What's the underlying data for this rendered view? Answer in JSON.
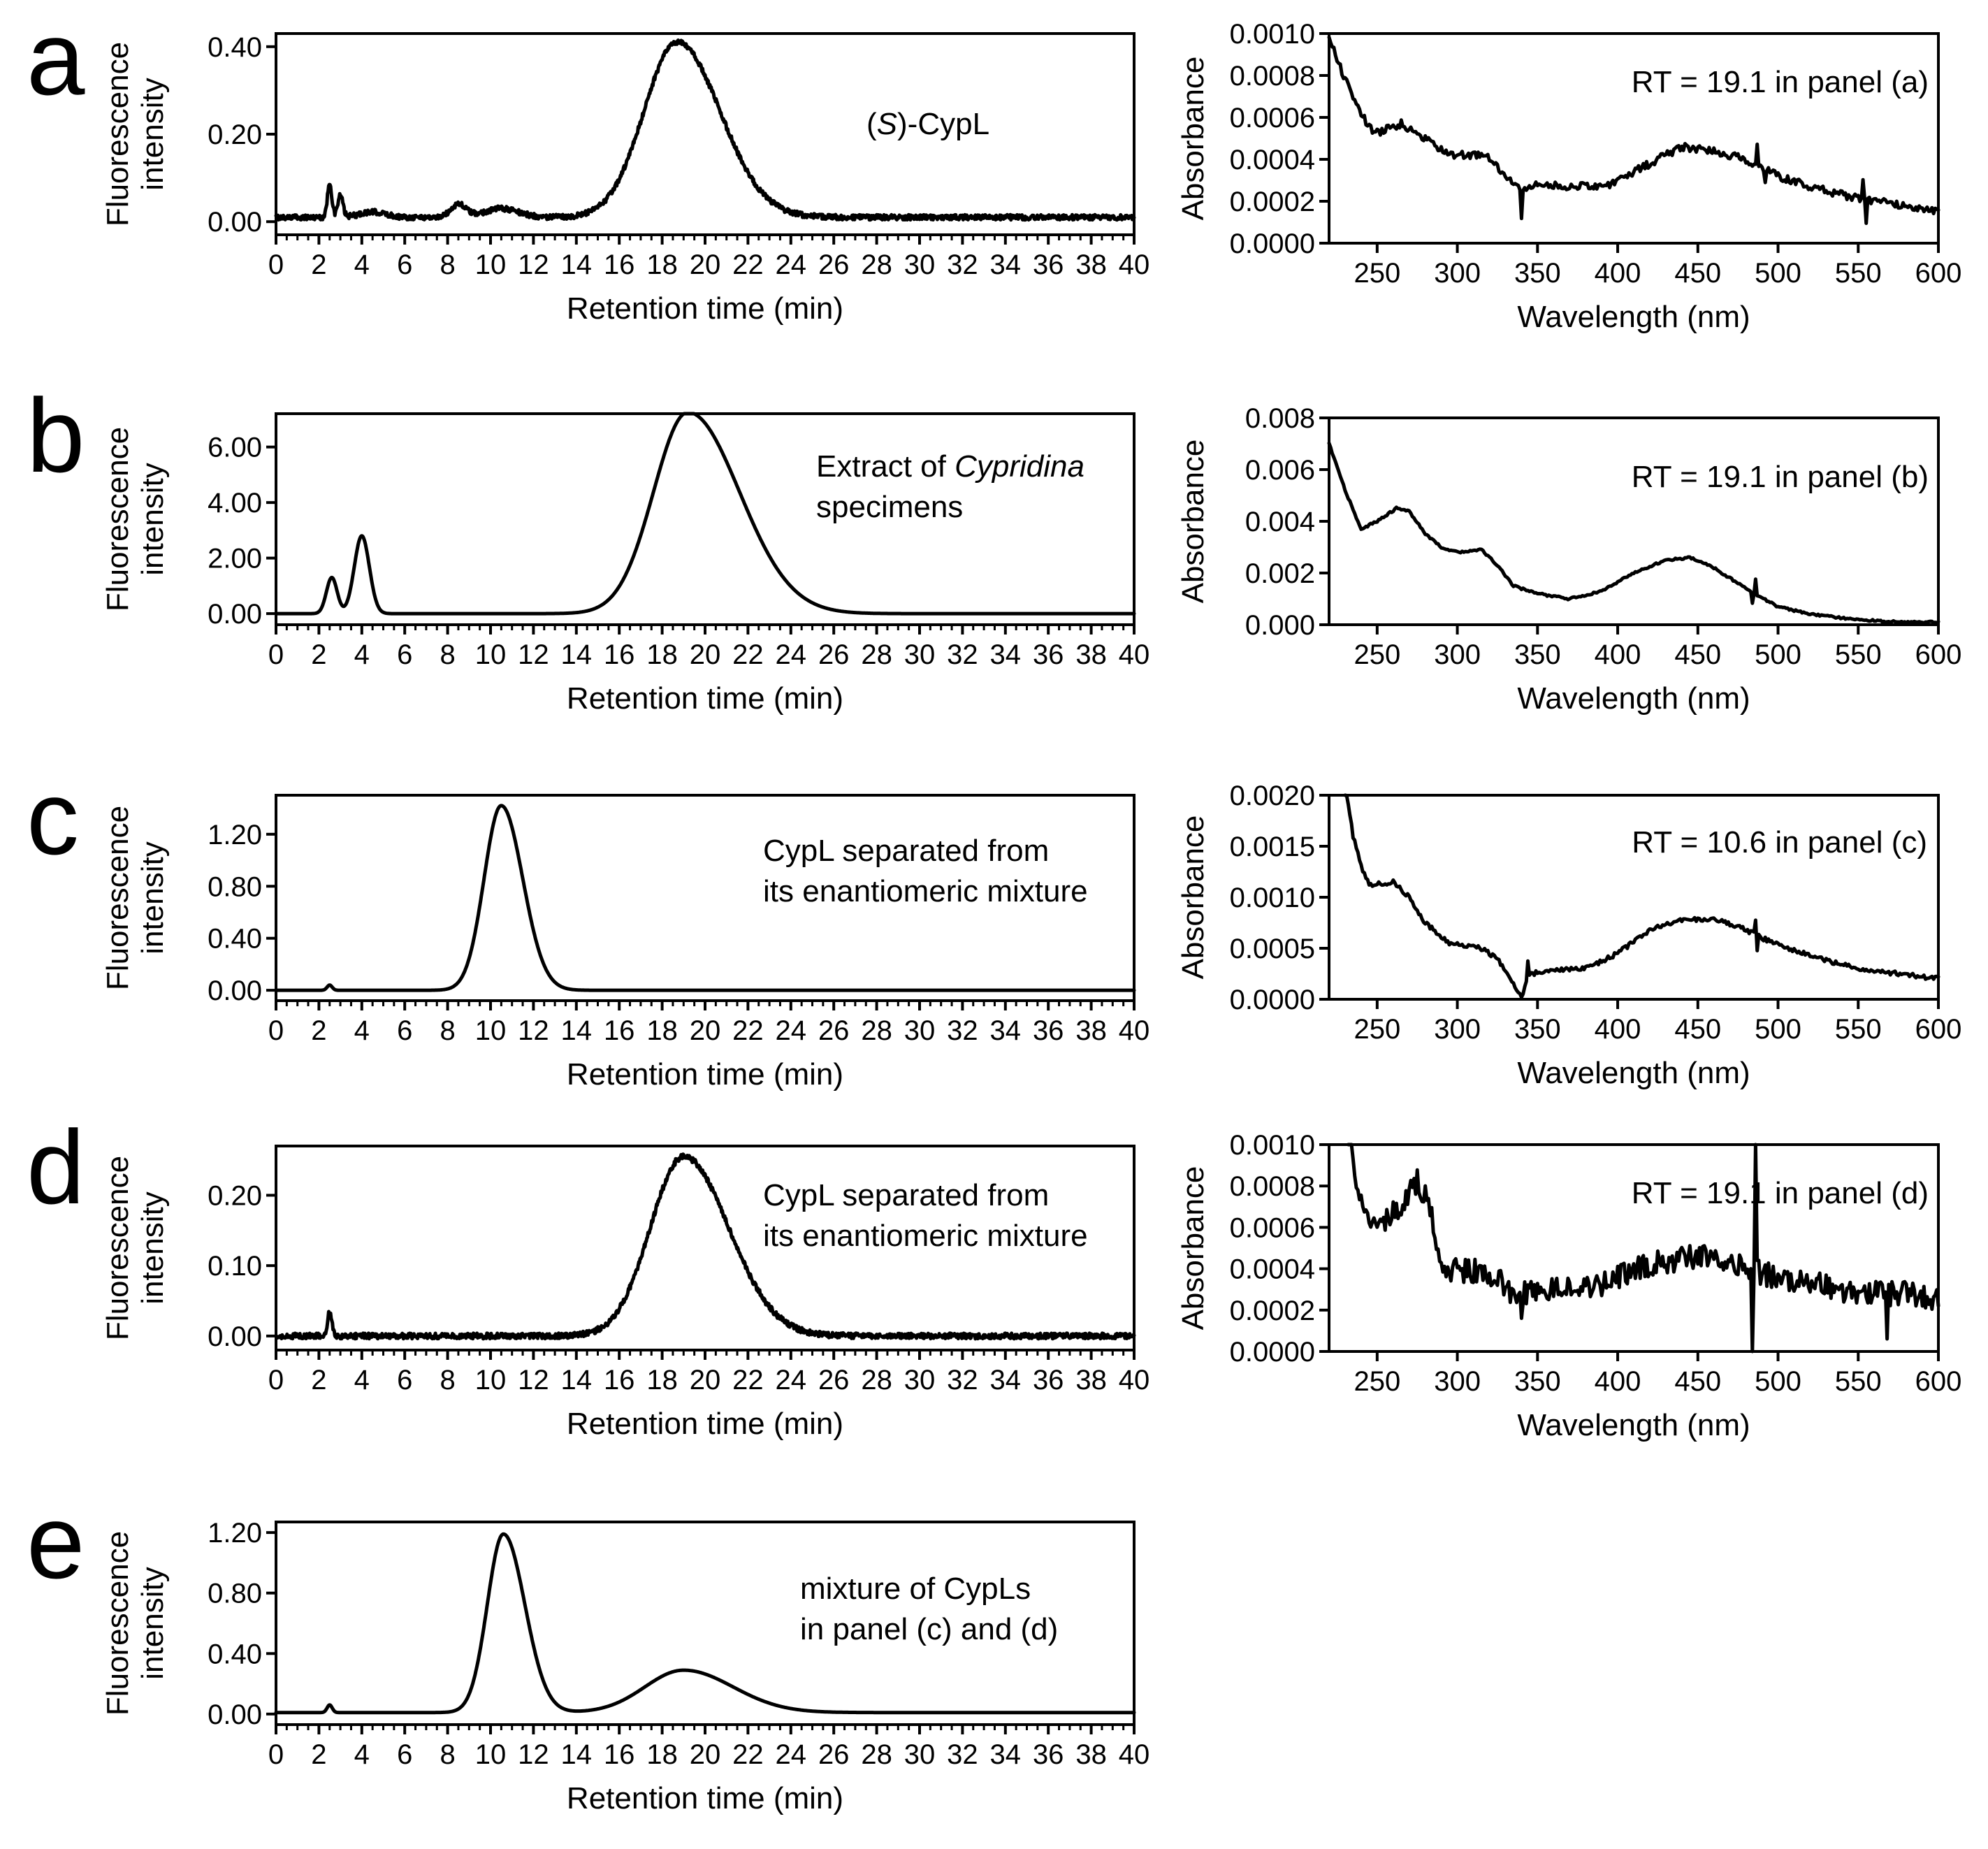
{
  "figure": {
    "panels": [
      {
        "id": "a",
        "letter": "a"
      },
      {
        "id": "b",
        "letter": "b"
      },
      {
        "id": "c",
        "letter": "c"
      },
      {
        "id": "d",
        "letter": "d"
      },
      {
        "id": "e",
        "letter": "e"
      }
    ]
  },
  "chart_data": [
    {
      "id": "a-chromatogram",
      "panel": "a",
      "type": "line",
      "xlabel": "Retention time (min)",
      "ylabel_lines": [
        "Fluorescence",
        "intensity"
      ],
      "xlim": [
        0,
        40
      ],
      "ylim": [
        -0.03,
        0.43
      ],
      "xticks": [
        0,
        2,
        4,
        6,
        8,
        10,
        12,
        14,
        16,
        18,
        20,
        22,
        24,
        26,
        28,
        30,
        32,
        34,
        36,
        38,
        40
      ],
      "yticks": [
        0.0,
        0.2,
        0.4
      ],
      "ytick_decimals": 2,
      "annotation_lines": [
        [
          {
            "text": "("
          },
          {
            "text": "S",
            "italic": true
          },
          {
            "text": ")-CypL"
          }
        ]
      ],
      "baseline": 0.01,
      "peaks": [
        [
          2.5,
          0.08,
          0.1
        ],
        [
          3.0,
          0.05,
          0.12
        ],
        [
          4.5,
          0.012,
          0.6
        ],
        [
          8.5,
          0.03,
          0.35
        ],
        [
          10.5,
          0.02,
          0.8
        ],
        [
          18.7,
          0.4,
          1.55,
          2.0
        ]
      ],
      "noise": 0.006
    },
    {
      "id": "a-spectrum",
      "panel": "a",
      "type": "line",
      "xlabel": "Wavelength (nm)",
      "ylabel_lines": [
        "Absorbance"
      ],
      "xlim": [
        220,
        600
      ],
      "ylim": [
        0,
        0.001
      ],
      "xticks": [
        250,
        300,
        350,
        400,
        450,
        500,
        550,
        600
      ],
      "yticks": [
        0.0,
        0.0002,
        0.0004,
        0.0006,
        0.0008,
        0.001
      ],
      "ytick_decimals": 4,
      "annotation_lines": [
        [
          {
            "text": "RT = 19.1 in panel (a)"
          }
        ]
      ],
      "points": [
        [
          220,
          0.00098
        ],
        [
          230,
          0.00078
        ],
        [
          240,
          0.00062
        ],
        [
          248,
          0.00052
        ],
        [
          265,
          0.00057
        ],
        [
          280,
          0.0005
        ],
        [
          295,
          0.00042
        ],
        [
          318,
          0.00042
        ],
        [
          330,
          0.00032
        ],
        [
          340,
          0.00025
        ],
        [
          350,
          0.00028
        ],
        [
          375,
          0.00027
        ],
        [
          395,
          0.00028
        ],
        [
          420,
          0.00038
        ],
        [
          440,
          0.00046
        ],
        [
          460,
          0.00044
        ],
        [
          480,
          0.0004
        ],
        [
          500,
          0.00032
        ],
        [
          520,
          0.00027
        ],
        [
          540,
          0.00023
        ],
        [
          560,
          0.0002
        ],
        [
          580,
          0.00018
        ],
        [
          600,
          0.00015
        ]
      ],
      "spikes": [
        [
          340,
          -0.00014
        ],
        [
          487,
          0.0001
        ],
        [
          492,
          -8e-05
        ],
        [
          553,
          0.0001
        ],
        [
          555,
          -0.00012
        ]
      ],
      "noise": 1.8e-05
    },
    {
      "id": "b-chromatogram",
      "panel": "b",
      "type": "line",
      "xlabel": "Retention time (min)",
      "ylabel_lines": [
        "Fluorescence",
        "intensity"
      ],
      "xlim": [
        0,
        40
      ],
      "ylim": [
        -0.4,
        7.2
      ],
      "xticks": [
        0,
        2,
        4,
        6,
        8,
        10,
        12,
        14,
        16,
        18,
        20,
        22,
        24,
        26,
        28,
        30,
        32,
        34,
        36,
        38,
        40
      ],
      "yticks": [
        0.0,
        2.0,
        4.0,
        6.0
      ],
      "ytick_decimals": 2,
      "annotation_lines": [
        [
          {
            "text": "Extract of "
          },
          {
            "text": "Cypridina",
            "italic": true
          }
        ],
        [
          {
            "text": "specimens"
          }
        ]
      ],
      "baseline": 0.0,
      "peaks": [
        [
          2.6,
          1.3,
          0.25
        ],
        [
          4.0,
          2.8,
          0.35
        ],
        [
          19.2,
          7.25,
          1.6,
          2.4
        ]
      ],
      "noise": 0.0
    },
    {
      "id": "b-spectrum",
      "panel": "b",
      "type": "line",
      "xlabel": "Wavelength (nm)",
      "ylabel_lines": [
        "Absorbance"
      ],
      "xlim": [
        220,
        600
      ],
      "ylim": [
        0,
        0.008
      ],
      "xticks": [
        250,
        300,
        350,
        400,
        450,
        500,
        550,
        600
      ],
      "yticks": [
        0.0,
        0.002,
        0.004,
        0.006,
        0.008
      ],
      "ytick_decimals": 3,
      "annotation_lines": [
        [
          {
            "text": "RT = 19.1 in panel (b)"
          }
        ]
      ],
      "points": [
        [
          220,
          0.007
        ],
        [
          230,
          0.0052
        ],
        [
          240,
          0.0037
        ],
        [
          250,
          0.004
        ],
        [
          262,
          0.0045
        ],
        [
          270,
          0.0044
        ],
        [
          280,
          0.0035
        ],
        [
          290,
          0.003
        ],
        [
          300,
          0.0028
        ],
        [
          315,
          0.0029
        ],
        [
          325,
          0.0023
        ],
        [
          335,
          0.0015
        ],
        [
          350,
          0.0012
        ],
        [
          370,
          0.001
        ],
        [
          390,
          0.0013
        ],
        [
          410,
          0.002
        ],
        [
          430,
          0.0025
        ],
        [
          445,
          0.0026
        ],
        [
          460,
          0.0022
        ],
        [
          480,
          0.0014
        ],
        [
          500,
          0.0007
        ],
        [
          520,
          0.0004
        ],
        [
          550,
          0.0002
        ],
        [
          575,
          0.0001
        ],
        [
          600,
          0.0001
        ]
      ],
      "spikes": [
        [
          486,
          0.0006
        ],
        [
          484,
          -0.0004
        ]
      ],
      "noise": 4e-05
    },
    {
      "id": "c-chromatogram",
      "panel": "c",
      "type": "line",
      "xlabel": "Retention time (min)",
      "ylabel_lines": [
        "Fluorescence",
        "intensity"
      ],
      "xlim": [
        0,
        40
      ],
      "ylim": [
        -0.08,
        1.5
      ],
      "xticks": [
        0,
        2,
        4,
        6,
        8,
        10,
        12,
        14,
        16,
        18,
        20,
        22,
        24,
        26,
        28,
        30,
        32,
        34,
        36,
        38,
        40
      ],
      "yticks": [
        0.0,
        0.4,
        0.8,
        1.2
      ],
      "ytick_decimals": 2,
      "annotation_lines": [
        [
          {
            "text": "CypL separated from"
          }
        ],
        [
          {
            "text": "its enantiomeric mixture"
          }
        ]
      ],
      "baseline": 0.0,
      "peaks": [
        [
          2.5,
          0.04,
          0.12
        ],
        [
          10.5,
          1.42,
          0.8,
          1.0
        ]
      ],
      "noise": 0.0
    },
    {
      "id": "c-spectrum",
      "panel": "c",
      "type": "line",
      "xlabel": "Wavelength (nm)",
      "ylabel_lines": [
        "Absorbance"
      ],
      "xlim": [
        220,
        600
      ],
      "ylim": [
        0,
        0.002
      ],
      "xticks": [
        250,
        300,
        350,
        400,
        450,
        500,
        550,
        600
      ],
      "yticks": [
        0.0,
        0.0005,
        0.001,
        0.0015,
        0.002
      ],
      "ytick_decimals": 4,
      "annotation_lines": [
        [
          {
            "text": "RT = 10.6 in panel (c)"
          }
        ]
      ],
      "points": [
        [
          230,
          0.0021
        ],
        [
          235,
          0.0016
        ],
        [
          240,
          0.0013
        ],
        [
          245,
          0.00112
        ],
        [
          260,
          0.00115
        ],
        [
          270,
          0.001
        ],
        [
          280,
          0.00075
        ],
        [
          295,
          0.00055
        ],
        [
          315,
          0.0005
        ],
        [
          325,
          0.0004
        ],
        [
          335,
          0.00015
        ],
        [
          340,
          3e-05
        ],
        [
          345,
          0.00025
        ],
        [
          360,
          0.00028
        ],
        [
          380,
          0.0003
        ],
        [
          400,
          0.00045
        ],
        [
          420,
          0.00068
        ],
        [
          440,
          0.00078
        ],
        [
          460,
          0.00078
        ],
        [
          475,
          0.00072
        ],
        [
          490,
          0.0006
        ],
        [
          510,
          0.00048
        ],
        [
          530,
          0.00038
        ],
        [
          550,
          0.0003
        ],
        [
          575,
          0.00025
        ],
        [
          600,
          0.0002
        ]
      ],
      "spikes": [
        [
          344,
          0.00016
        ],
        [
          486,
          0.00015
        ],
        [
          487,
          -0.00013
        ]
      ],
      "noise": 2.2e-05
    },
    {
      "id": "d-chromatogram",
      "panel": "d",
      "type": "line",
      "xlabel": "Retention time (min)",
      "ylabel_lines": [
        "Fluorescence",
        "intensity"
      ],
      "xlim": [
        0,
        40
      ],
      "ylim": [
        -0.02,
        0.27
      ],
      "xticks": [
        0,
        2,
        4,
        6,
        8,
        10,
        12,
        14,
        16,
        18,
        20,
        22,
        24,
        26,
        28,
        30,
        32,
        34,
        36,
        38,
        40
      ],
      "yticks": [
        0.0,
        0.1,
        0.2
      ],
      "ytick_decimals": 2,
      "annotation_lines": [
        [
          {
            "text": "CypL separated from"
          }
        ],
        [
          {
            "text": "its enantiomeric mixture"
          }
        ]
      ],
      "baseline": 0.0,
      "peaks": [
        [
          2.5,
          0.035,
          0.1
        ],
        [
          19.0,
          0.255,
          1.55,
          2.1
        ]
      ],
      "noise": 0.004
    },
    {
      "id": "d-spectrum",
      "panel": "d",
      "type": "line",
      "xlabel": "Wavelength (nm)",
      "ylabel_lines": [
        "Absorbance"
      ],
      "xlim": [
        220,
        600
      ],
      "ylim": [
        0,
        0.001
      ],
      "xticks": [
        250,
        300,
        350,
        400,
        450,
        500,
        550,
        600
      ],
      "yticks": [
        0.0,
        0.0002,
        0.0004,
        0.0006,
        0.0008,
        0.001
      ],
      "ytick_decimals": 4,
      "annotation_lines": [
        [
          {
            "text": "RT = 19.1 in panel (d)"
          }
        ]
      ],
      "points": [
        [
          232,
          0.0011
        ],
        [
          238,
          0.0008
        ],
        [
          245,
          0.00065
        ],
        [
          255,
          0.00062
        ],
        [
          265,
          0.00072
        ],
        [
          275,
          0.00083
        ],
        [
          283,
          0.0007
        ],
        [
          288,
          0.00045
        ],
        [
          295,
          0.0004
        ],
        [
          320,
          0.00038
        ],
        [
          335,
          0.00028
        ],
        [
          350,
          0.0003
        ],
        [
          380,
          0.0003
        ],
        [
          400,
          0.00036
        ],
        [
          420,
          0.00042
        ],
        [
          440,
          0.00045
        ],
        [
          460,
          0.00046
        ],
        [
          480,
          0.0004
        ],
        [
          500,
          0.00036
        ],
        [
          520,
          0.00033
        ],
        [
          540,
          0.0003
        ],
        [
          560,
          0.00028
        ],
        [
          580,
          0.00028
        ],
        [
          600,
          0.00026
        ]
      ],
      "spikes": [
        [
          340,
          -0.00012
        ],
        [
          484,
          -0.0004
        ],
        [
          486,
          0.0006
        ],
        [
          568,
          -0.00025
        ]
      ],
      "noise": 6e-05
    },
    {
      "id": "e-chromatogram",
      "panel": "e",
      "type": "line",
      "xlabel": "Retention time (min)",
      "ylabel_lines": [
        "Fluorescence",
        "intensity"
      ],
      "xlim": [
        0,
        40
      ],
      "ylim": [
        -0.07,
        1.27
      ],
      "xticks": [
        0,
        2,
        4,
        6,
        8,
        10,
        12,
        14,
        16,
        18,
        20,
        22,
        24,
        26,
        28,
        30,
        32,
        34,
        36,
        38,
        40
      ],
      "yticks": [
        0.0,
        0.4,
        0.8,
        1.2
      ],
      "ytick_decimals": 2,
      "annotation_lines": [
        [
          {
            "text": "mixture of CypLs"
          }
        ],
        [
          {
            "text": "in panel (c) and (d)"
          }
        ]
      ],
      "baseline": 0.01,
      "peaks": [
        [
          2.5,
          0.05,
          0.12
        ],
        [
          10.6,
          1.18,
          0.75,
          1.0
        ],
        [
          19.0,
          0.28,
          1.8,
          2.3
        ]
      ],
      "noise": 0.0
    }
  ]
}
